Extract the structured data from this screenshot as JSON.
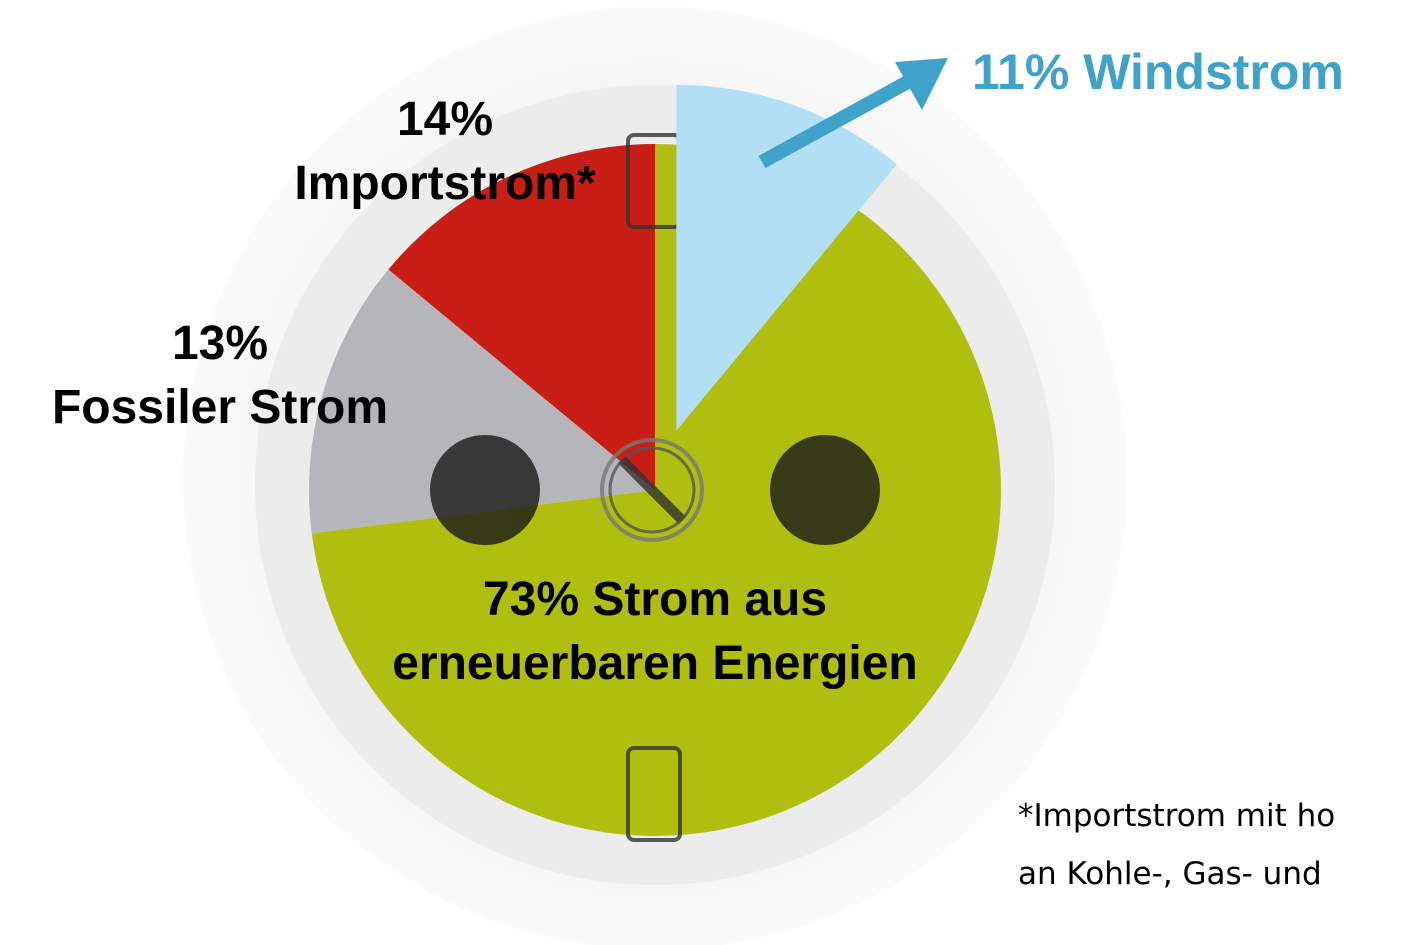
{
  "chart_data": {
    "type": "pie",
    "categories": [
      "Strom aus erneuerbaren Energien",
      "Fossiler Strom",
      "Importstrom*"
    ],
    "values": [
      73,
      13,
      14
    ],
    "value_labels": [
      "73%",
      "13%",
      "14%"
    ],
    "colors": [
      "#afbe0f",
      "#b5b5ba",
      "#c81e16"
    ],
    "highlight": {
      "name": "Windstrom",
      "value": 11,
      "value_label": "11%",
      "color": "#b3dff4",
      "label_color": "#3fa3c9"
    },
    "footnote": [
      "*Importstrom mit ho",
      "an Kohle-, Gas- und"
    ]
  }
}
